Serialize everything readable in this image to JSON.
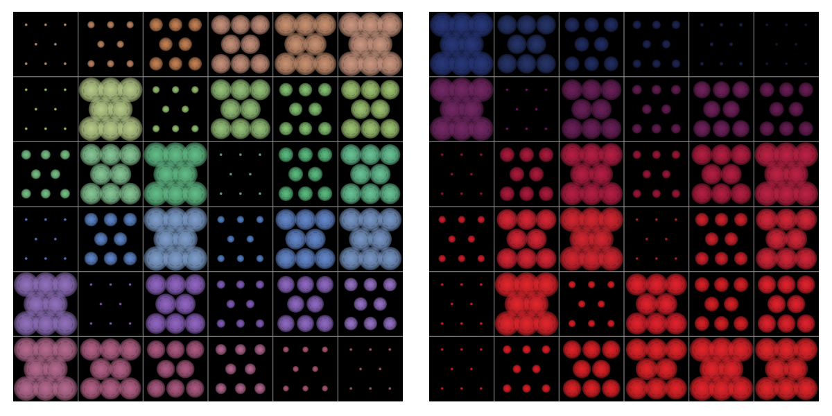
{
  "image": {
    "background_color": "#ffffff",
    "panel_background": "#000000",
    "grid_line_color": "#9a9a9a",
    "grid": {
      "rows": 6,
      "cols": 6
    },
    "panels": [
      {
        "id": "left",
        "description_key": "colorful-radial-pattern-grid",
        "cells": [
          [
            {
              "color": "#c89a78",
              "level": 0.12
            },
            {
              "color": "#c98d68",
              "level": 0.3
            },
            {
              "color": "#d28a5a",
              "level": 0.55
            },
            {
              "color": "#d39a84",
              "level": 0.8
            },
            {
              "color": "#d59a78",
              "level": 0.92
            },
            {
              "color": "#d8a088",
              "level": 1.0
            }
          ],
          [
            {
              "color": "#a8c878",
              "level": 0.12
            },
            {
              "color": "#c2d892",
              "level": 1.0
            },
            {
              "color": "#9ecf78",
              "level": 0.3
            },
            {
              "color": "#9fce82",
              "level": 0.85
            },
            {
              "color": "#8fd07c",
              "level": 0.55
            },
            {
              "color": "#a8d07a",
              "level": 0.8
            }
          ],
          [
            {
              "color": "#7fcf90",
              "level": 0.4
            },
            {
              "color": "#8fd4a0",
              "level": 0.88
            },
            {
              "color": "#68c890",
              "level": 1.0
            },
            {
              "color": "#70b888",
              "level": 0.1
            },
            {
              "color": "#60c888",
              "level": 0.6
            },
            {
              "color": "#6fd0a0",
              "level": 0.85
            }
          ],
          [
            {
              "color": "#6080c8",
              "level": 0.12
            },
            {
              "color": "#6690d8",
              "level": 0.55
            },
            {
              "color": "#86a8d8",
              "level": 1.0
            },
            {
              "color": "#5a88d0",
              "level": 0.3
            },
            {
              "color": "#6a90d8",
              "level": 0.85
            },
            {
              "color": "#7fa0d2",
              "level": 0.95
            }
          ],
          [
            {
              "color": "#9a78c8",
              "level": 1.0
            },
            {
              "color": "#8a5cc0",
              "level": 0.1
            },
            {
              "color": "#9a6cd0",
              "level": 0.85
            },
            {
              "color": "#8a62c6",
              "level": 0.35
            },
            {
              "color": "#9870d0",
              "level": 0.7
            },
            {
              "color": "#a07ad4",
              "level": 0.55
            }
          ],
          [
            {
              "color": "#c07098",
              "level": 1.0
            },
            {
              "color": "#c06890",
              "level": 0.9
            },
            {
              "color": "#b8608a",
              "level": 0.75
            },
            {
              "color": "#c06e9a",
              "level": 0.45
            },
            {
              "color": "#b85c80",
              "level": 0.25
            },
            {
              "color": "#b05a80",
              "level": 0.12
            }
          ]
        ]
      },
      {
        "id": "right",
        "description_key": "red-radial-pattern-grid",
        "cells": [
          [
            {
              "color": "#2a3a80",
              "level": 1.0
            },
            {
              "color": "#283870",
              "level": 0.8
            },
            {
              "color": "#243068",
              "level": 0.6
            },
            {
              "color": "#20285a",
              "level": 0.35
            },
            {
              "color": "#1c2450",
              "level": 0.15
            },
            {
              "color": "#181c40",
              "level": 0.08
            }
          ],
          [
            {
              "color": "#7a2a6a",
              "level": 1.0
            },
            {
              "color": "#6a2060",
              "level": 0.1
            },
            {
              "color": "#70225e",
              "level": 0.85
            },
            {
              "color": "#6a2058",
              "level": 0.4
            },
            {
              "color": "#782462",
              "level": 0.7
            },
            {
              "color": "#70205a",
              "level": 0.6
            }
          ],
          [
            {
              "color": "#a01838",
              "level": 0.1
            },
            {
              "color": "#b81c40",
              "level": 0.6
            },
            {
              "color": "#c02048",
              "level": 0.95
            },
            {
              "color": "#a8183c",
              "level": 0.35
            },
            {
              "color": "#c02046",
              "level": 0.85
            },
            {
              "color": "#c82448",
              "level": 1.0
            }
          ],
          [
            {
              "color": "#e02030",
              "level": 0.3
            },
            {
              "color": "#e62838",
              "level": 0.85
            },
            {
              "color": "#e02834",
              "level": 1.0
            },
            {
              "color": "#d01c2c",
              "level": 0.08
            },
            {
              "color": "#e02430",
              "level": 0.55
            },
            {
              "color": "#e0283c",
              "level": 0.9
            }
          ],
          [
            {
              "color": "#e81c28",
              "level": 0.12
            },
            {
              "color": "#f02830",
              "level": 1.0
            },
            {
              "color": "#e82028",
              "level": 0.3
            },
            {
              "color": "#f02430",
              "level": 0.9
            },
            {
              "color": "#e82228",
              "level": 0.6
            },
            {
              "color": "#f02430",
              "level": 0.75
            }
          ],
          [
            {
              "color": "#e81c24",
              "level": 0.1
            },
            {
              "color": "#ec2028",
              "level": 0.35
            },
            {
              "color": "#ee242a",
              "level": 0.75
            },
            {
              "color": "#f0262c",
              "level": 0.9
            },
            {
              "color": "#f0262e",
              "level": 1.0
            },
            {
              "color": "#f0282e",
              "level": 0.95
            }
          ]
        ]
      }
    ]
  }
}
